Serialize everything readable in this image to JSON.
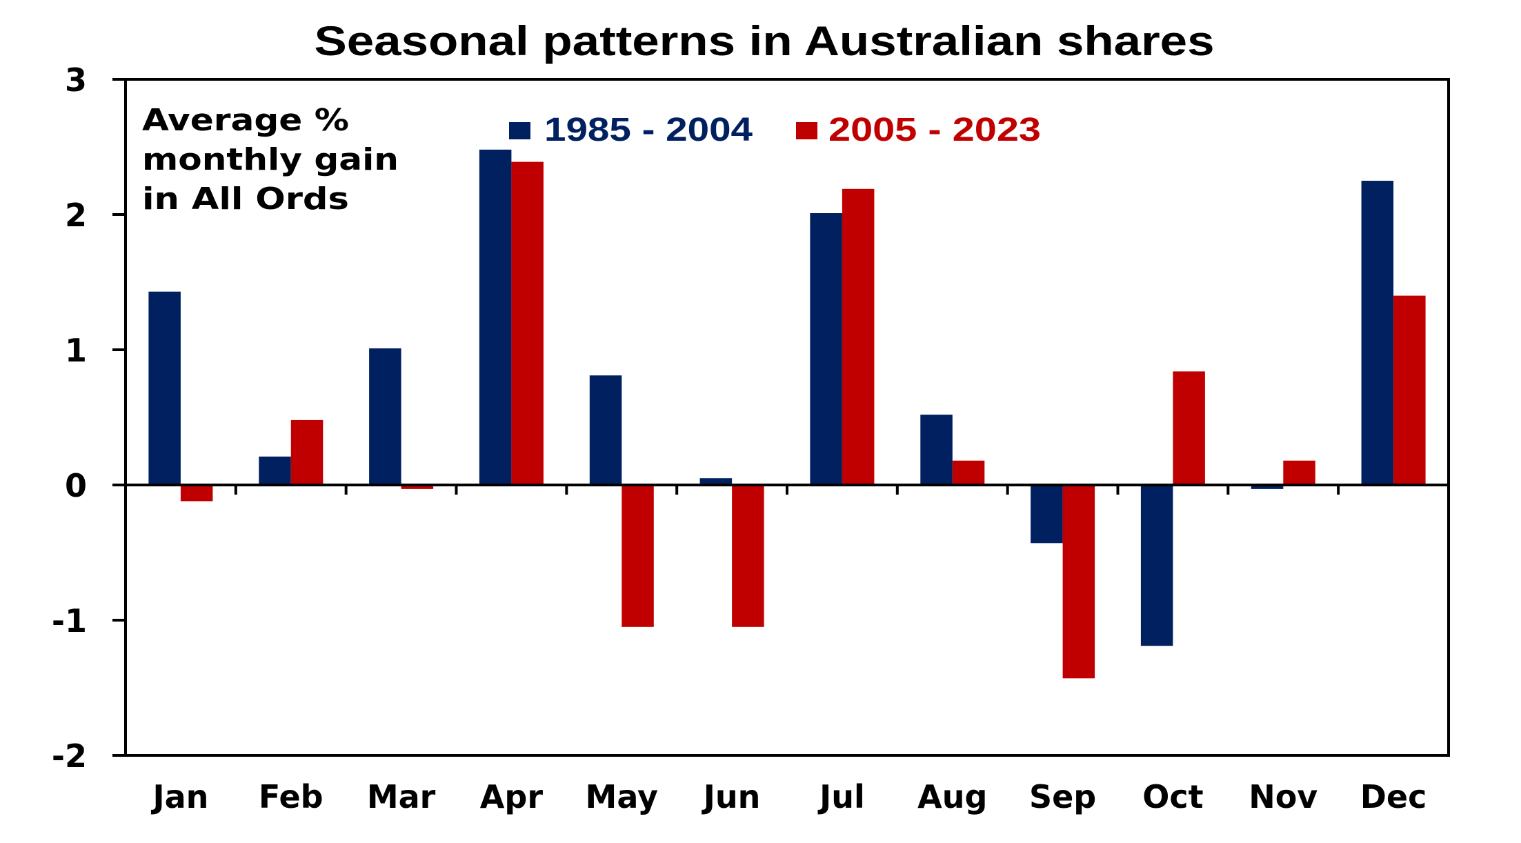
{
  "chart_data": {
    "type": "bar",
    "title": "Seasonal patterns in Australian shares",
    "annotation": [
      "Average %",
      "monthly gain",
      "in All Ords"
    ],
    "xlabel": "",
    "ylabel": "",
    "ylim": [
      -2,
      3
    ],
    "yticks": [
      3,
      2,
      1,
      0,
      -1,
      -2
    ],
    "ytick_labels": [
      "3",
      "2",
      "1",
      "0",
      "-1",
      "-2"
    ],
    "grid": false,
    "legend_position": "top-center",
    "categories": [
      "Jan",
      "Feb",
      "Mar",
      "Apr",
      "May",
      "Jun",
      "Jul",
      "Aug",
      "Sep",
      "Oct",
      "Nov",
      "Dec"
    ],
    "series": [
      {
        "name": "1985 - 2004",
        "color": "#002060",
        "values": [
          1.43,
          0.21,
          1.01,
          2.48,
          0.81,
          0.05,
          2.01,
          0.52,
          -0.43,
          -1.19,
          -0.03,
          2.25
        ]
      },
      {
        "name": "2005 - 2023",
        "color": "#C00000",
        "values": [
          -0.12,
          0.48,
          -0.03,
          2.39,
          -1.05,
          -1.05,
          2.19,
          0.18,
          -1.43,
          0.84,
          0.18,
          1.4
        ]
      }
    ]
  }
}
